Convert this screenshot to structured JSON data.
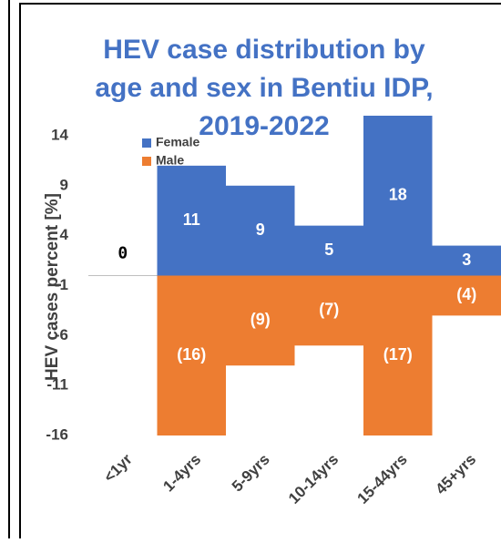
{
  "chart_data": {
    "type": "bar",
    "title": [
      "HEV case distribution by",
      "age and sex in Bentiu IDP,",
      "2019-2022"
    ],
    "y_label": "HEV cases percent [%]",
    "categories": [
      "<1yr",
      "1-4yrs",
      "5-9yrs",
      "10-14yrs",
      "15-44yrs",
      "45+yrs"
    ],
    "series": [
      {
        "name": "Female",
        "color": "#4472c4",
        "values": [
          0,
          11,
          9,
          5,
          18,
          3
        ]
      },
      {
        "name": "Male",
        "color": "#ed7d31",
        "values": [
          0,
          -16,
          -9,
          -7,
          -17,
          -4
        ],
        "value_labels": [
          null,
          "(16)",
          "(9)",
          "(7)",
          "(17)",
          "(4)"
        ]
      }
    ],
    "stacked": true,
    "ylim": [
      -16,
      16
    ],
    "yticks": [
      14,
      9,
      4,
      -1,
      -6,
      -11,
      -16
    ],
    "legend": "top-left"
  }
}
